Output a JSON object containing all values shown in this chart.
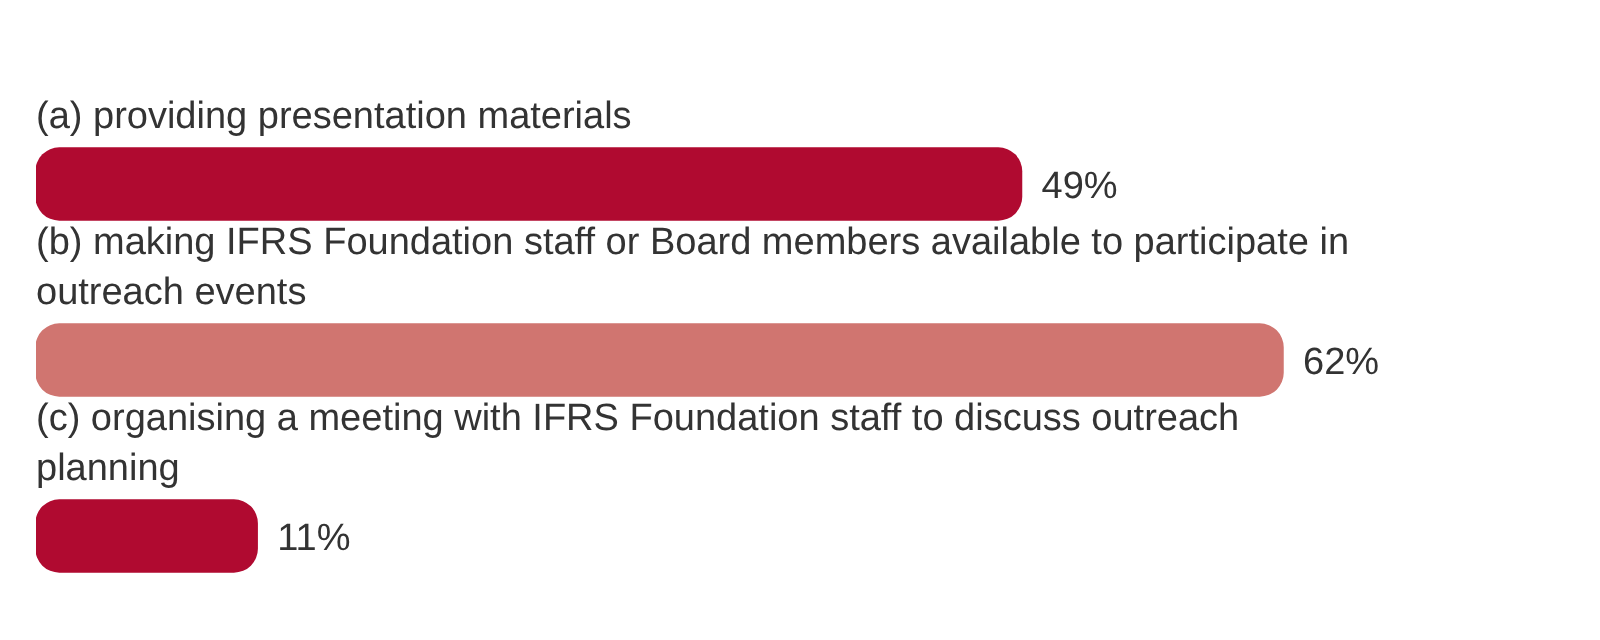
{
  "chart_data": {
    "type": "bar",
    "orientation": "horizontal",
    "categories": [
      "(a) providing presentation materials",
      "(b) making IFRS Foundation staff or Board members available to participate in outreach events",
      "(c) organising a meeting with IFRS Foundation staff to discuss outreach planning"
    ],
    "values": [
      49,
      62,
      11
    ],
    "colors": [
      "#b00a30",
      "#d07570",
      "#b00a30"
    ],
    "value_labels": [
      "49%",
      "62%",
      "11%"
    ],
    "legend": false
  }
}
